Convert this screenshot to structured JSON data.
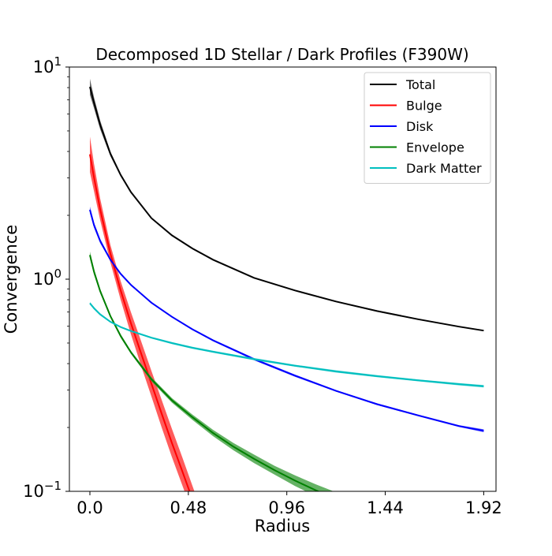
{
  "chart_data": {
    "type": "line",
    "title": "Decomposed 1D Stellar / Dark Profiles (F390W)",
    "xlabel": "Radius",
    "ylabel": "Convergence",
    "xscale": "linear",
    "yscale": "log",
    "xlim": [
      -0.1,
      1.98
    ],
    "ylim": [
      0.1,
      10
    ],
    "xticks": [
      0.0,
      0.48,
      0.96,
      1.44,
      1.92
    ],
    "xtick_labels": [
      "0.0",
      "0.48",
      "0.96",
      "1.44",
      "1.92"
    ],
    "yticks": [
      0.1,
      1,
      10
    ],
    "ytick_labels": [
      {
        "base": "10",
        "exp": "−1"
      },
      {
        "base": "10",
        "exp": "0"
      },
      {
        "base": "10",
        "exp": "1"
      }
    ],
    "grid": false,
    "legend_position": "top-right",
    "series": [
      {
        "name": "Total",
        "color": "#000000",
        "band": "#444444",
        "x": [
          0.0,
          0.02,
          0.05,
          0.1,
          0.15,
          0.2,
          0.3,
          0.4,
          0.5,
          0.6,
          0.8,
          1.0,
          1.2,
          1.4,
          1.6,
          1.8,
          1.92
        ],
        "upper": [
          8.8,
          7.2,
          5.6,
          4.0,
          3.15,
          2.6,
          1.95,
          1.62,
          1.4,
          1.24,
          1.02,
          0.89,
          0.79,
          0.71,
          0.65,
          0.6,
          0.575
        ],
        "lower": [
          7.4,
          6.4,
          5.1,
          3.8,
          3.05,
          2.55,
          1.93,
          1.6,
          1.39,
          1.23,
          1.01,
          0.88,
          0.78,
          0.705,
          0.645,
          0.595,
          0.57
        ]
      },
      {
        "name": "Bulge",
        "color": "#ff0000",
        "band": "#ff3333",
        "x": [
          0.0,
          0.02,
          0.05,
          0.1,
          0.15,
          0.2,
          0.25,
          0.3,
          0.35,
          0.4,
          0.45,
          0.5,
          0.53
        ],
        "upper": [
          4.7,
          3.5,
          2.4,
          1.45,
          0.98,
          0.7,
          0.51,
          0.37,
          0.27,
          0.197,
          0.145,
          0.106,
          0.088
        ],
        "lower": [
          3.2,
          2.6,
          1.9,
          1.2,
          0.8,
          0.55,
          0.39,
          0.28,
          0.2,
          0.145,
          0.107,
          0.079,
          0.066
        ]
      },
      {
        "name": "Disk",
        "color": "#0000ff",
        "band": "#3333ff",
        "x": [
          0.0,
          0.02,
          0.05,
          0.1,
          0.15,
          0.2,
          0.3,
          0.4,
          0.5,
          0.6,
          0.8,
          1.0,
          1.2,
          1.4,
          1.6,
          1.8,
          1.92
        ],
        "upper": [
          2.2,
          1.85,
          1.55,
          1.25,
          1.07,
          0.95,
          0.78,
          0.67,
          0.585,
          0.52,
          0.425,
          0.355,
          0.3,
          0.26,
          0.23,
          0.205,
          0.196
        ],
        "lower": [
          2.05,
          1.75,
          1.48,
          1.22,
          1.05,
          0.93,
          0.77,
          0.66,
          0.575,
          0.51,
          0.415,
          0.347,
          0.295,
          0.255,
          0.226,
          0.201,
          0.19
        ]
      },
      {
        "name": "Envelope",
        "color": "#008000",
        "band": "#3f9f3f",
        "x": [
          0.0,
          0.02,
          0.05,
          0.1,
          0.15,
          0.2,
          0.3,
          0.4,
          0.5,
          0.6,
          0.7,
          0.8,
          0.9,
          1.0,
          1.1,
          1.2,
          1.25
        ],
        "upper": [
          1.35,
          1.12,
          0.9,
          0.68,
          0.55,
          0.46,
          0.345,
          0.275,
          0.23,
          0.195,
          0.169,
          0.149,
          0.132,
          0.119,
          0.108,
          0.099,
          0.095
        ],
        "lower": [
          1.25,
          1.05,
          0.86,
          0.66,
          0.53,
          0.445,
          0.33,
          0.262,
          0.217,
          0.182,
          0.156,
          0.136,
          0.12,
          0.106,
          0.095,
          0.085,
          0.081
        ]
      },
      {
        "name": "Dark Matter",
        "color": "#00bfbf",
        "band": "#33cccc",
        "x": [
          0.0,
          0.02,
          0.05,
          0.1,
          0.15,
          0.2,
          0.3,
          0.4,
          0.5,
          0.6,
          0.8,
          1.0,
          1.2,
          1.4,
          1.6,
          1.8,
          1.92
        ],
        "upper": [
          0.78,
          0.74,
          0.69,
          0.635,
          0.6,
          0.575,
          0.535,
          0.505,
          0.48,
          0.46,
          0.425,
          0.395,
          0.372,
          0.353,
          0.337,
          0.324,
          0.317
        ],
        "lower": [
          0.76,
          0.72,
          0.675,
          0.625,
          0.59,
          0.565,
          0.525,
          0.495,
          0.47,
          0.45,
          0.415,
          0.387,
          0.363,
          0.345,
          0.33,
          0.316,
          0.309
        ]
      }
    ]
  }
}
